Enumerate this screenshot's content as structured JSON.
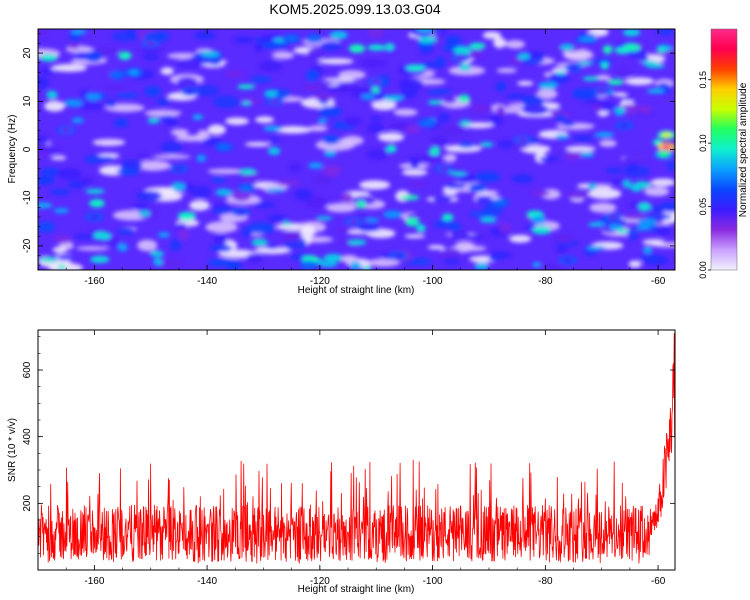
{
  "title": "KOM5.2025.099.13.03.G04",
  "chart_data": [
    {
      "type": "heatmap",
      "xlabel": "Height of straight line (km)",
      "ylabel": "Frequency (Hz)",
      "xlim": [
        -170,
        -57
      ],
      "ylim": [
        -25,
        25
      ],
      "xticks": [
        -160,
        -140,
        -120,
        -100,
        -80,
        -60
      ],
      "xtick_labels": [
        "-160",
        "-140",
        "-120",
        "-100",
        "-80",
        "-60"
      ],
      "yticks": [
        -20,
        -10,
        0,
        10,
        20
      ],
      "ytick_labels": [
        "-20",
        "-10",
        "0",
        "10",
        "20"
      ],
      "colorbar": {
        "label": "Normalized spectral amplitude",
        "range": [
          0,
          0.19
        ],
        "ticks": [
          0,
          0.05,
          0.1,
          0.15
        ],
        "tick_labels": [
          "0.00",
          "0.05",
          "0.10",
          "0.15"
        ],
        "colormap": [
          "#f2f2ff",
          "#c9a0ff",
          "#8a2be2",
          "#3c1cff",
          "#0a46ff",
          "#0aa0ff",
          "#0ff0d0",
          "#20ff60",
          "#c8ff00",
          "#ffd000",
          "#ff4000",
          "#ff0050",
          "#ff2a8a"
        ]
      },
      "hotspots": [
        {
          "x": -58.5,
          "y": 0.5,
          "value": 0.19
        },
        {
          "x": -58.5,
          "y": 3,
          "value": 0.13
        },
        {
          "x": -59,
          "y": -1,
          "value": 0.11
        },
        {
          "x": -153,
          "y": 16,
          "value": 0.08
        },
        {
          "x": -156,
          "y": 15.5,
          "value": 0.07
        },
        {
          "x": -121,
          "y": 23,
          "value": 0.07
        },
        {
          "x": -125,
          "y": 23,
          "value": 0.07
        },
        {
          "x": -137,
          "y": 0.5,
          "value": 0.07
        },
        {
          "x": -133,
          "y": -8,
          "value": 0.07
        },
        {
          "x": -122,
          "y": -24,
          "value": 0.07
        },
        {
          "x": -101,
          "y": 5.5,
          "value": 0.07
        },
        {
          "x": -88,
          "y": -11,
          "value": 0.07
        },
        {
          "x": -92,
          "y": -8,
          "value": 0.06
        },
        {
          "x": -118,
          "y": 2,
          "value": 0.06
        },
        {
          "x": -134,
          "y": -13,
          "value": 0.05
        },
        {
          "x": -143,
          "y": 12,
          "value": 0.05
        },
        {
          "x": -75,
          "y": 17,
          "value": 0.05
        },
        {
          "x": -66,
          "y": 5,
          "value": 0.05
        },
        {
          "x": -76,
          "y": -23,
          "value": 0.05
        },
        {
          "x": -160,
          "y": -14,
          "value": 0.05
        },
        {
          "x": -145,
          "y": -4,
          "value": 0.05
        },
        {
          "x": -106,
          "y": -22,
          "value": 0.05
        },
        {
          "x": -98,
          "y": -4,
          "value": 0.04
        },
        {
          "x": -110,
          "y": 14,
          "value": 0.04
        },
        {
          "x": -84,
          "y": 2,
          "value": 0.04
        },
        {
          "x": -68,
          "y": -14,
          "value": 0.04
        },
        {
          "x": -165,
          "y": 4,
          "value": 0.04
        },
        {
          "x": -150,
          "y": 22,
          "value": 0.04
        },
        {
          "x": -128,
          "y": 10,
          "value": 0.04
        },
        {
          "x": -70,
          "y": 12,
          "value": 0.04
        },
        {
          "x": -95,
          "y": 19,
          "value": 0.04
        },
        {
          "x": -114,
          "y": -15,
          "value": 0.04
        }
      ]
    },
    {
      "type": "line",
      "xlabel": "Height of straight line (km)",
      "ylabel": "SNR (10 * v/v)",
      "xlim": [
        -170,
        -57
      ],
      "ylim": [
        0,
        720
      ],
      "xticks": [
        -160,
        -140,
        -120,
        -100,
        -80,
        -60
      ],
      "xtick_labels": [
        "-160",
        "-140",
        "-120",
        "-100",
        "-80",
        "-60"
      ],
      "yticks": [
        200,
        400,
        600
      ],
      "ytick_labels": [
        "200",
        "400",
        "600"
      ],
      "series_color": "#ff0000",
      "baseline": 110,
      "noise_range": [
        20,
        330
      ],
      "x": [
        -170,
        -160,
        -150,
        -140,
        -130,
        -120,
        -110,
        -100,
        -90,
        -80,
        -70,
        -62,
        -60,
        -59,
        -58,
        -57.5,
        -57
      ],
      "y": [
        110,
        110,
        110,
        110,
        110,
        110,
        110,
        110,
        110,
        110,
        120,
        140,
        200,
        330,
        450,
        600,
        700
      ]
    }
  ]
}
